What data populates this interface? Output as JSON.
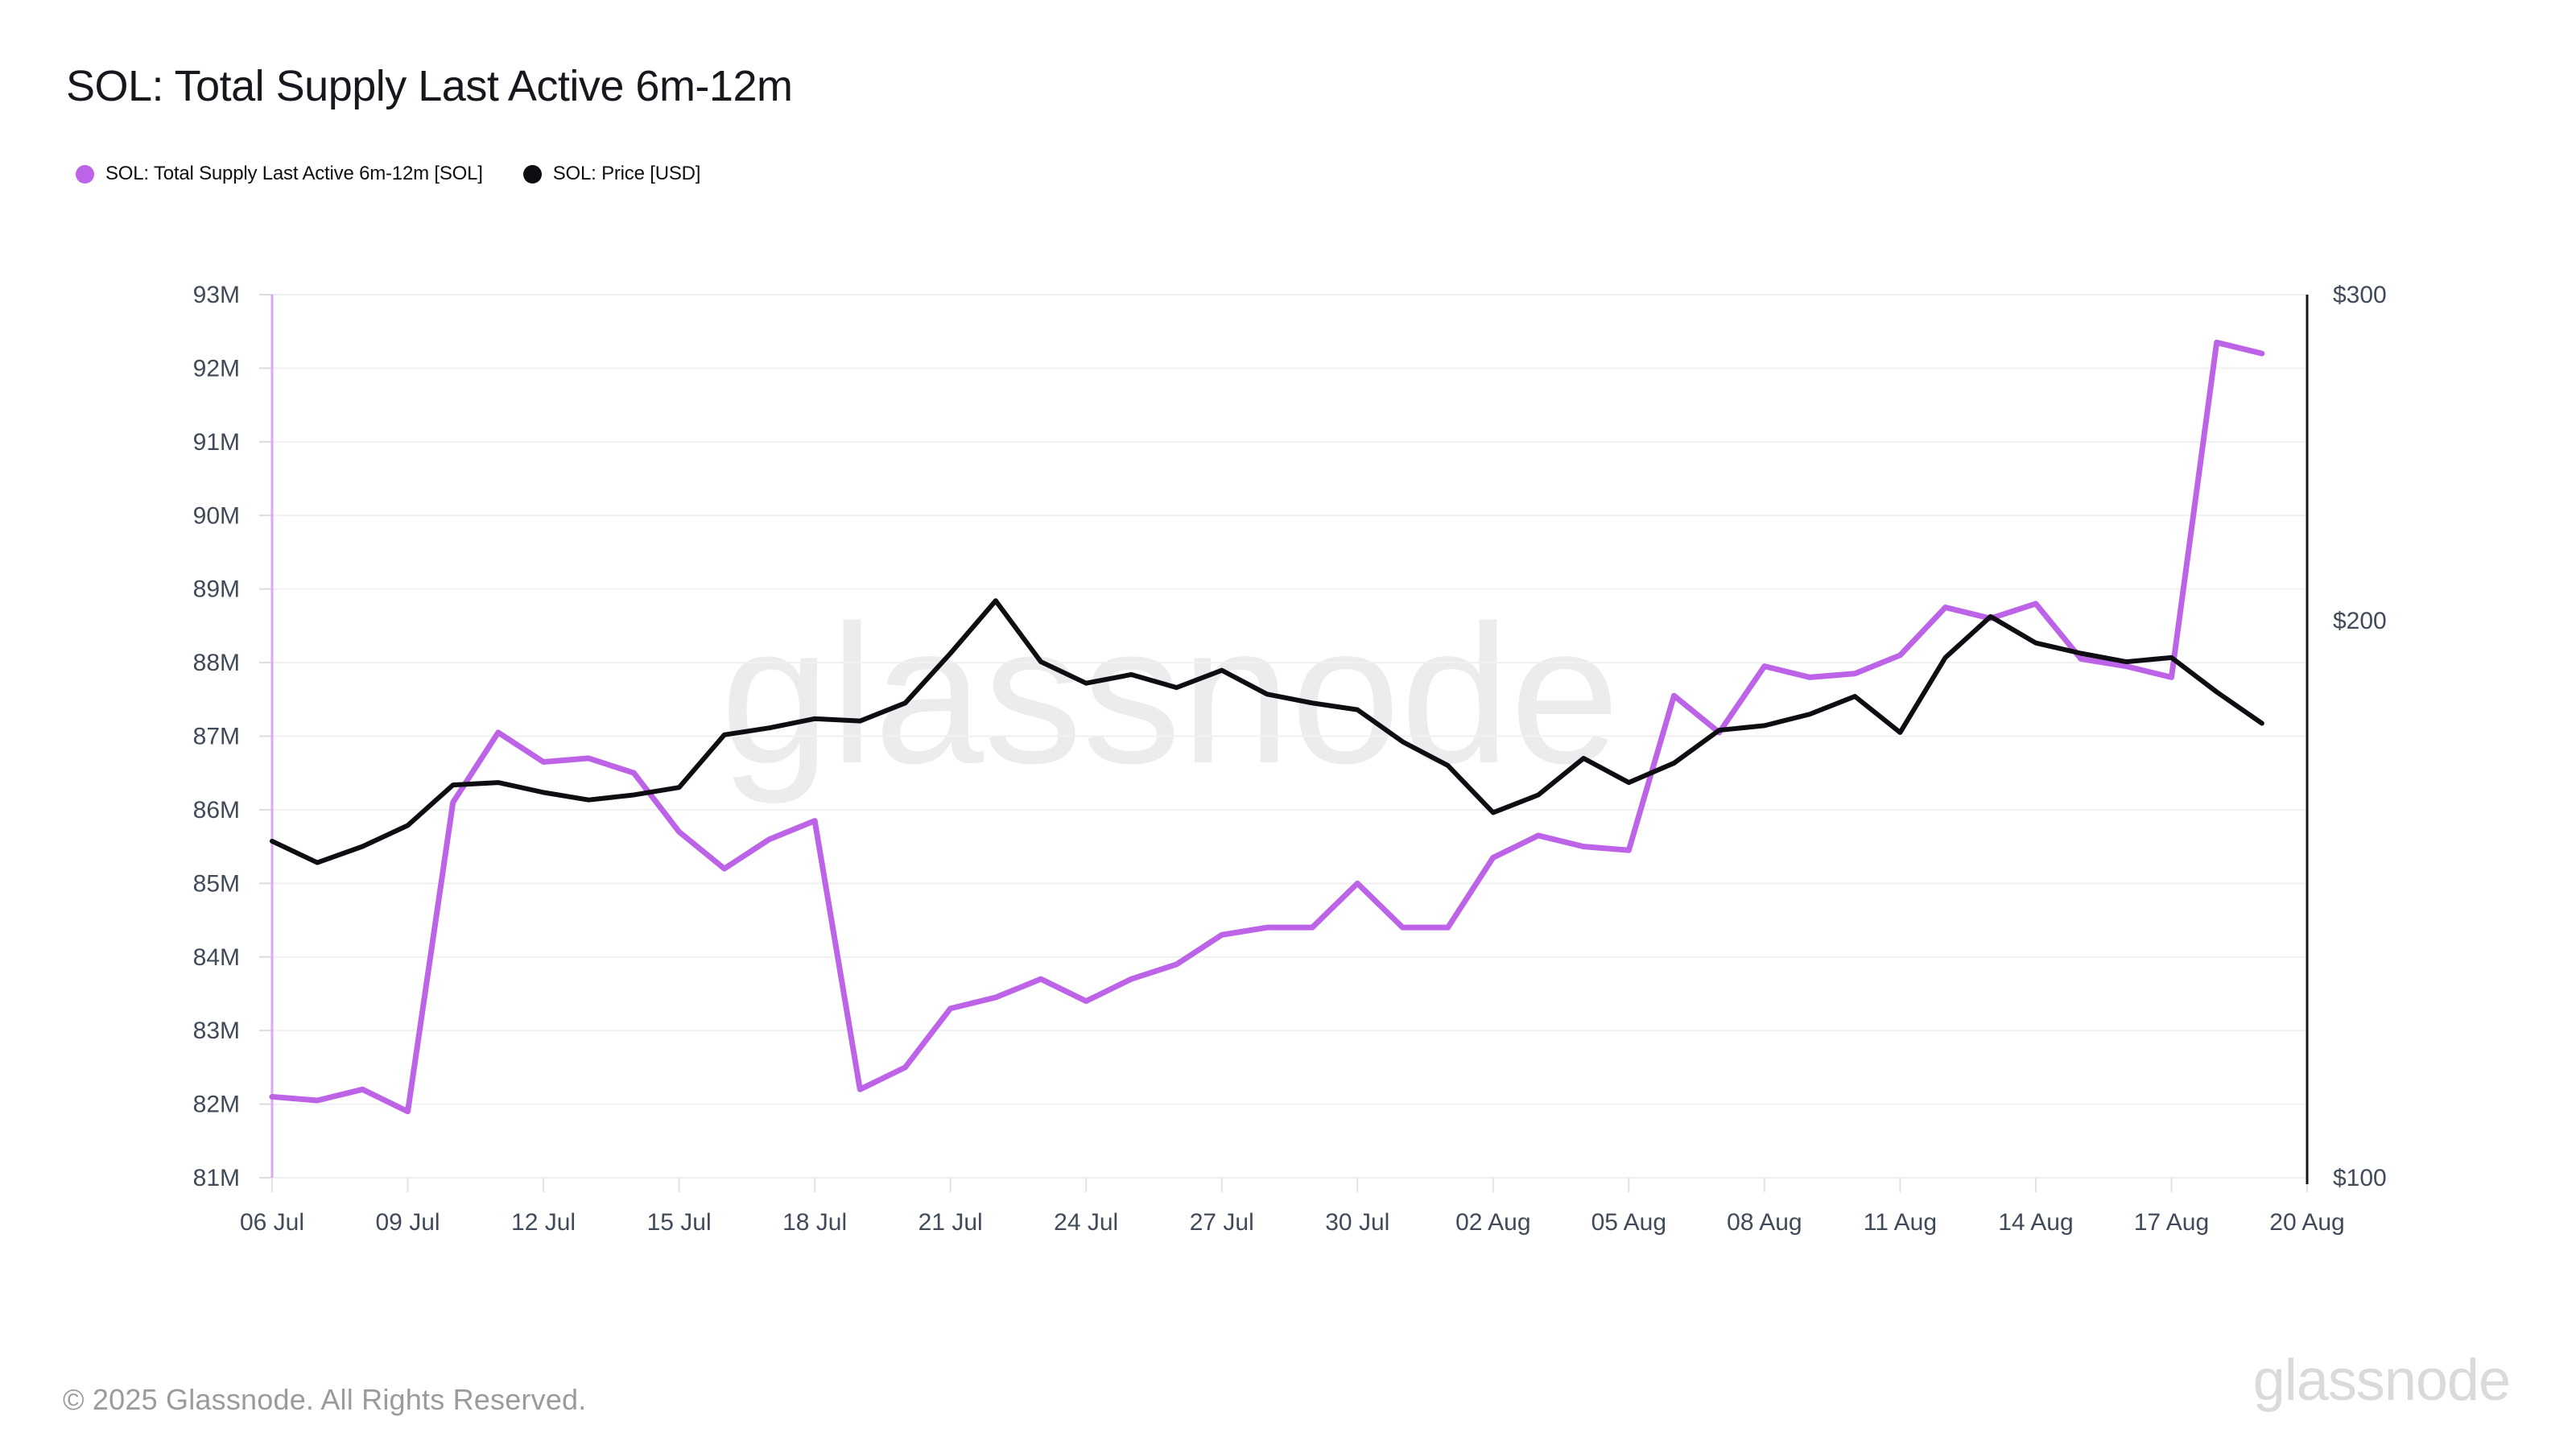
{
  "header": {
    "title": "SOL: Total Supply Last Active 6m-12m"
  },
  "legend": {
    "items": [
      {
        "label": "SOL: Total Supply Last Active 6m-12m [SOL]",
        "color": "#bd63e8"
      },
      {
        "label": "SOL: Price [USD]",
        "color": "#0e0e12"
      }
    ]
  },
  "watermark": "glassnode",
  "footer": {
    "copyright": "© 2025 Glassnode. All Rights Reserved.",
    "brand_logo": "glassnode"
  },
  "chart_data": {
    "type": "line",
    "title": "SOL: Total Supply Last Active 6m-12m",
    "grid": "horizontal-only",
    "legend_position": "top-left",
    "x_axis": {
      "unit": "date",
      "interval": "daily",
      "days_span": 45,
      "tick_days": [
        0,
        3,
        6,
        9,
        12,
        15,
        18,
        21,
        24,
        27,
        30,
        33,
        36,
        39,
        42,
        45
      ],
      "tick_labels": [
        "06 Jul",
        "09 Jul",
        "12 Jul",
        "15 Jul",
        "18 Jul",
        "21 Jul",
        "24 Jul",
        "27 Jul",
        "30 Jul",
        "02 Aug",
        "05 Aug",
        "08 Aug",
        "11 Aug",
        "14 Aug",
        "17 Aug",
        "20 Aug"
      ]
    },
    "y_left": {
      "label": "Total Supply Last Active 6m-12m [SOL]",
      "scale": "linear",
      "min": 81000000,
      "max": 93000000,
      "axis_color": "#d9a8f2",
      "ticks": [
        {
          "value": 93000000,
          "label": "93M"
        },
        {
          "value": 92000000,
          "label": "92M"
        },
        {
          "value": 91000000,
          "label": "91M"
        },
        {
          "value": 90000000,
          "label": "90M"
        },
        {
          "value": 89000000,
          "label": "89M"
        },
        {
          "value": 88000000,
          "label": "88M"
        },
        {
          "value": 87000000,
          "label": "87M"
        },
        {
          "value": 86000000,
          "label": "86M"
        },
        {
          "value": 85000000,
          "label": "85M"
        },
        {
          "value": 84000000,
          "label": "84M"
        },
        {
          "value": 83000000,
          "label": "83M"
        },
        {
          "value": 82000000,
          "label": "82M"
        },
        {
          "value": 81000000,
          "label": "81M"
        }
      ]
    },
    "y_right": {
      "label": "Price [USD]",
      "scale": "log",
      "min": 100,
      "max": 300,
      "axis_color": "#17171c",
      "ticks": [
        {
          "value": 300,
          "label": "$300"
        },
        {
          "value": 200,
          "label": "$200"
        },
        {
          "value": 100,
          "label": "$100"
        }
      ]
    },
    "dates": [
      "06 Jul",
      "07 Jul",
      "08 Jul",
      "09 Jul",
      "10 Jul",
      "11 Jul",
      "12 Jul",
      "13 Jul",
      "14 Jul",
      "15 Jul",
      "16 Jul",
      "17 Jul",
      "18 Jul",
      "19 Jul",
      "20 Jul",
      "21 Jul",
      "22 Jul",
      "23 Jul",
      "24 Jul",
      "25 Jul",
      "26 Jul",
      "27 Jul",
      "28 Jul",
      "29 Jul",
      "30 Jul",
      "31 Jul",
      "01 Aug",
      "02 Aug",
      "03 Aug",
      "04 Aug",
      "05 Aug",
      "06 Aug",
      "07 Aug",
      "08 Aug",
      "09 Aug",
      "10 Aug",
      "11 Aug",
      "12 Aug",
      "13 Aug",
      "14 Aug",
      "15 Aug",
      "16 Aug",
      "17 Aug",
      "18 Aug",
      "19 Aug"
    ],
    "series": [
      {
        "name": "SOL: Total Supply Last Active 6m-12m [SOL]",
        "axis": "left",
        "unit": "SOL (millions)",
        "color": "#bd63e8",
        "stroke_width": 7,
        "values_millions": [
          82.1,
          82.05,
          82.2,
          81.9,
          86.1,
          87.05,
          86.65,
          86.7,
          86.5,
          85.7,
          85.2,
          85.6,
          85.85,
          82.2,
          82.5,
          83.3,
          83.45,
          83.7,
          83.4,
          83.7,
          83.9,
          84.3,
          84.4,
          84.4,
          85.0,
          84.4,
          84.4,
          85.35,
          85.65,
          85.5,
          85.45,
          87.55,
          87.05,
          87.95,
          87.8,
          87.85,
          88.1,
          88.75,
          88.6,
          88.8,
          88.05,
          87.95,
          87.8,
          92.35,
          92.2
        ]
      },
      {
        "name": "SOL: Price [USD]",
        "axis": "right",
        "unit": "USD",
        "color": "#0e0e12",
        "stroke_width": 6,
        "values_usd": [
          152,
          148,
          151,
          155,
          163,
          163.5,
          161.5,
          160,
          161,
          162.5,
          173.5,
          175,
          177,
          176.5,
          180.5,
          192,
          205,
          190,
          185,
          187,
          184,
          188,
          182.5,
          180.5,
          179,
          172,
          167,
          157.5,
          161,
          168.5,
          163.5,
          167.5,
          174.5,
          175.5,
          178,
          182,
          174,
          191,
          201,
          194.5,
          192,
          190,
          191,
          183,
          176
        ]
      }
    ]
  }
}
